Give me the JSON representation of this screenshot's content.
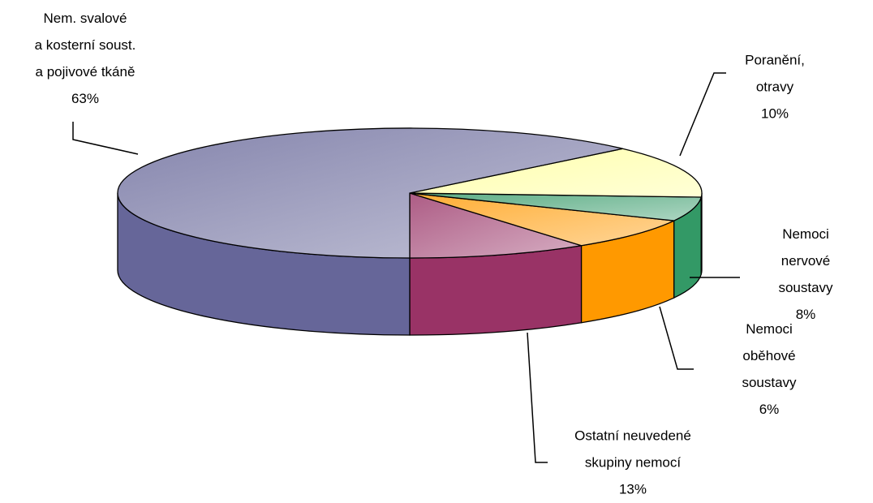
{
  "chart_data": {
    "type": "pie3d",
    "categories": [
      "Poranění, otravy",
      "Nemoci nervové\nsoustavy",
      "Nemoci\noběhové soustavy",
      "Ostatní neuvedené\nskupiny nemocí",
      "Nem. svalové\na kosterní soust.\na pojivové tkáně"
    ],
    "values": [
      10,
      8,
      6,
      13,
      63
    ],
    "value_labels": [
      "10%",
      "8%",
      "6%",
      "13%",
      "63%"
    ],
    "colors": [
      "#993366",
      "#ff9900",
      "#339966",
      "#ffff99",
      "#666699"
    ]
  }
}
